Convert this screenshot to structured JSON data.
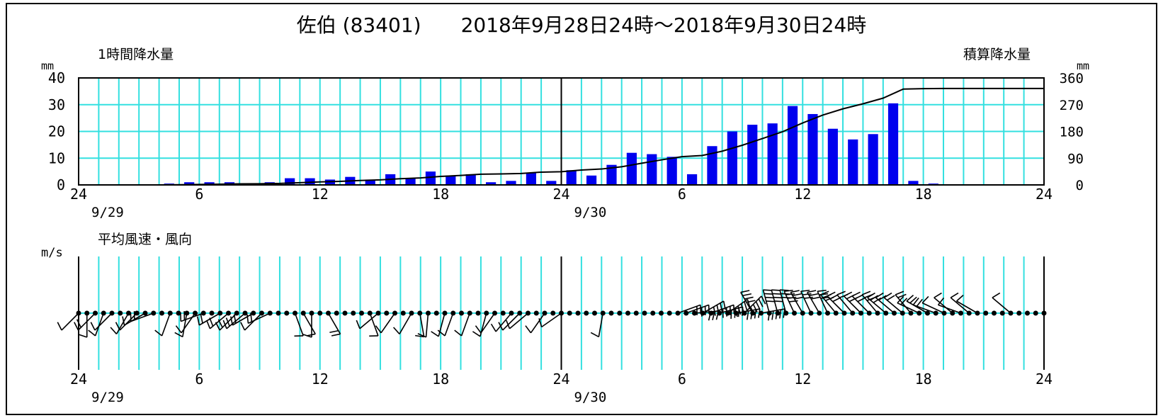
{
  "title": "佐伯 (83401)　　2018年9月28日24時〜2018年9月30日24時",
  "chart_data": [
    {
      "type": "bar",
      "panel": "precipitation",
      "label_left": "1時間降水量",
      "unit_left": "mm",
      "label_right": "積算降水量",
      "unit_right": "mm",
      "y_ticks": [
        "0",
        "10",
        "20",
        "30",
        "40"
      ],
      "y2_ticks": [
        "0",
        "90",
        "180",
        "270",
        "360"
      ],
      "ylim": [
        0,
        40
      ],
      "y2lim": [
        0,
        360
      ],
      "x_ticks": [
        "24",
        "6",
        "12",
        "18",
        "24",
        "6",
        "12",
        "18",
        "24"
      ],
      "date_labels": [
        "9/29",
        "9/30"
      ],
      "hourly_mm": [
        0,
        0,
        0,
        0,
        0.5,
        1,
        1,
        1,
        0.5,
        1,
        2.5,
        2.5,
        2,
        3,
        2,
        4,
        2.5,
        5,
        3.5,
        4,
        1,
        1.5,
        4.5,
        1.5,
        5.5,
        3.5,
        7.5,
        12,
        11.5,
        10.5,
        4,
        14.5,
        20,
        22.5,
        23,
        29.5,
        26.5,
        21,
        17,
        19,
        30.5,
        1.5,
        0.5,
        0,
        0,
        0,
        0,
        0
      ],
      "cumulative_mm": [
        0,
        0,
        0,
        0,
        0.5,
        1.5,
        2.5,
        3.5,
        4,
        5,
        7.5,
        10,
        12,
        15,
        17,
        21,
        23.5,
        28.5,
        32,
        36,
        37,
        38.5,
        43,
        44.5,
        50,
        53.5,
        61,
        73,
        84.5,
        95,
        99,
        113.5,
        133.5,
        156,
        179,
        208.5,
        235,
        256,
        273,
        292,
        322.5,
        324,
        324.5,
        324.5,
        324.5,
        324.5,
        324.5,
        324.5
      ],
      "colors": {
        "bar": "#0000ee",
        "grid": "#33e0e0",
        "line": "#000000"
      }
    },
    {
      "type": "wind-barbs",
      "panel": "wind",
      "label": "平均風速・風向",
      "unit": "m/s",
      "x_ticks": [
        "24",
        "6",
        "12",
        "18",
        "24",
        "6",
        "12",
        "18",
        "24"
      ],
      "date_labels": [
        "9/29",
        "9/30"
      ],
      "wind_direction_deg": [
        225,
        180,
        225,
        200,
        225,
        null,
        210,
        225,
        240,
        250,
        null,
        200,
        null,
        190,
        215,
        250,
        null,
        240,
        230,
        225,
        230,
        240,
        225,
        245,
        null,
        null,
        160,
        150,
        180,
        null,
        150,
        null,
        null,
        null,
        null,
        160,
        230,
        null,
        215,
        null,
        210,
        170,
        185,
        null,
        195,
        200,
        null,
        200,
        null,
        195,
        215,
        null,
        220,
        225,
        230,
        null,
        215,
        null,
        235,
        null,
        null,
        null,
        null,
        190,
        null,
        null,
        null,
        null,
        null,
        null,
        null,
        null,
        70,
        70,
        85,
        60,
        70,
        75,
        55,
        80,
        45,
        330,
        80,
        345,
        345,
        345,
        335,
        330,
        335,
        330,
        335,
        320,
        315,
        320,
        315,
        315,
        320,
        310,
        310,
        310,
        320,
        295,
        300,
        290,
        295,
        310,
        290,
        310,
        300,
        null,
        null,
        null,
        310,
        null,
        null,
        null,
        null
      ],
      "wind_speed_ms": [
        2,
        2,
        3,
        2,
        2,
        0,
        2,
        2,
        2,
        3,
        0,
        2,
        0,
        2,
        2,
        3,
        0,
        3,
        3,
        3,
        3,
        3,
        2,
        3,
        0,
        0,
        2,
        2,
        2,
        0,
        3,
        0,
        0,
        0,
        0,
        2,
        2,
        0,
        2,
        0,
        2,
        2,
        2,
        0,
        2,
        2,
        0,
        2,
        0,
        2,
        2,
        0,
        2,
        2,
        2,
        0,
        2,
        0,
        2,
        0,
        0,
        0,
        0,
        2,
        0,
        0,
        0,
        0,
        0,
        0,
        0,
        0,
        3,
        5,
        6,
        7,
        8,
        7,
        9,
        8,
        10,
        7,
        10,
        8,
        7,
        6,
        7,
        6,
        5,
        5,
        6,
        6,
        5,
        4,
        5,
        5,
        6,
        5,
        4,
        4,
        4,
        4,
        3,
        3,
        2,
        2,
        2,
        2,
        2,
        0,
        0,
        0,
        2,
        0,
        0,
        0,
        0
      ],
      "colors": {
        "barb": "#000000",
        "grid": "#33e0e0"
      }
    }
  ]
}
